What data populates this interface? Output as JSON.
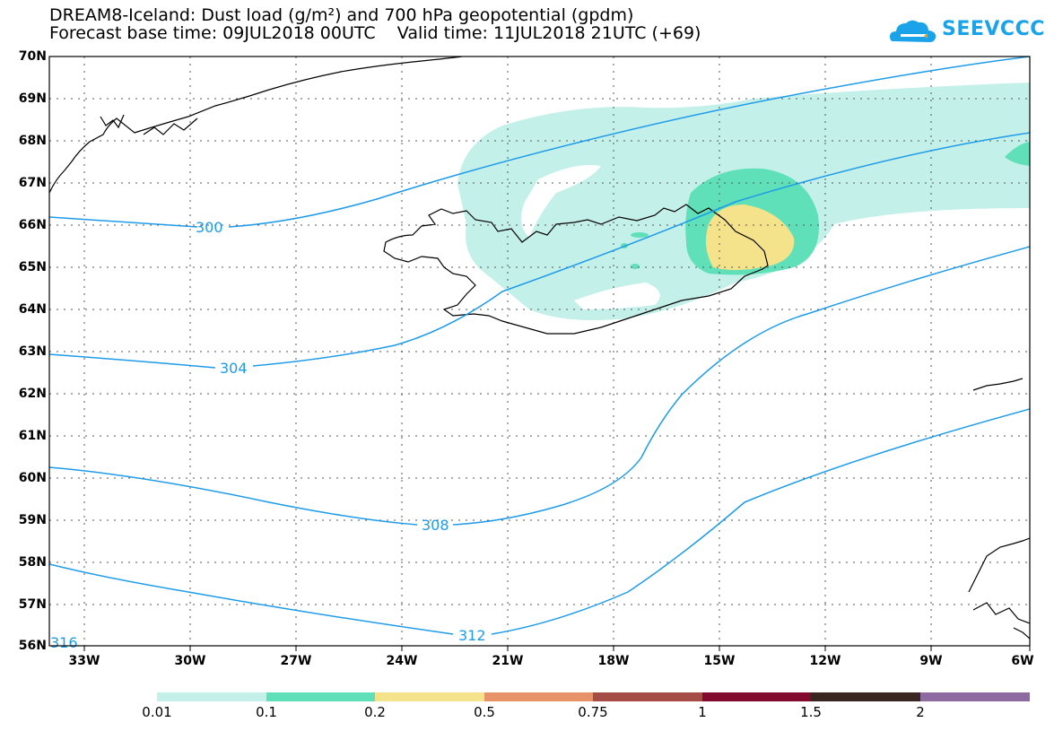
{
  "title_line1": "DREAM8-Iceland: Dust load (g/m²) and 700 hPa geopotential (gpdm)",
  "title_line2": "Forecast base time: 09JUL2018 00UTC    Valid time: 11JUL2018 21UTC (+69)",
  "logo_text": "SEEVCCC",
  "lat_labels": [
    "70N",
    "69N",
    "68N",
    "67N",
    "66N",
    "65N",
    "64N",
    "63N",
    "62N",
    "61N",
    "60N",
    "59N",
    "58N",
    "57N",
    "56N"
  ],
  "lon_labels": [
    "33W",
    "30W",
    "27W",
    "24W",
    "21W",
    "18W",
    "15W",
    "12W",
    "9W",
    "6W"
  ],
  "contour_labels": [
    "300",
    "304",
    "308",
    "312",
    "316"
  ],
  "colors": {
    "contour": "#1e9be8",
    "level1": "#c4f0ea",
    "level2": "#5fe0b8",
    "level3": "#f4e38a",
    "land_outline": "#000000"
  },
  "colorbar": {
    "colors": [
      "#c4f0ea",
      "#5fe0b8",
      "#f4e38a",
      "#e8926a",
      "#a44c45",
      "#820a2e",
      "#3a2620",
      "#8d6a9f"
    ],
    "labels": [
      "0.01",
      "0.1",
      "0.2",
      "0.5",
      "0.75",
      "1",
      "1.5",
      "2"
    ]
  }
}
